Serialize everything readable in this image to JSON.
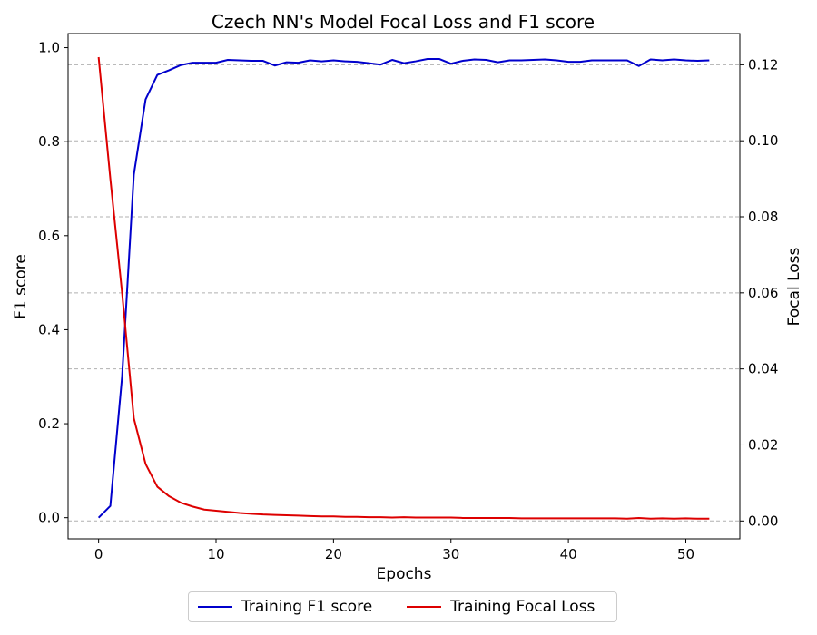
{
  "chart_data": {
    "type": "line",
    "title": "Czech NN's Model Focal Loss and F1 score",
    "xlabel": "Epochs",
    "ylabel_left": "F1 score",
    "ylabel_right": "Focal Loss",
    "xlim": [
      -2.6,
      54.6
    ],
    "ylim_left": [
      -0.045,
      1.03
    ],
    "ylim_right": [
      -0.0047,
      0.1282
    ],
    "x_ticks": [
      0,
      10,
      20,
      30,
      40,
      50
    ],
    "y_left_ticks": [
      0.0,
      0.2,
      0.4,
      0.6,
      0.8,
      1.0
    ],
    "y_right_ticks": [
      0.0,
      0.02,
      0.04,
      0.06,
      0.08,
      0.1,
      0.12
    ],
    "grid": "horizontal dashed on right axis",
    "legend_position": "bottom-center",
    "x": [
      0,
      1,
      2,
      3,
      4,
      5,
      6,
      7,
      8,
      9,
      10,
      11,
      12,
      13,
      14,
      15,
      16,
      17,
      18,
      19,
      20,
      21,
      22,
      23,
      24,
      25,
      26,
      27,
      28,
      29,
      30,
      31,
      32,
      33,
      34,
      35,
      36,
      37,
      38,
      39,
      40,
      41,
      42,
      43,
      44,
      45,
      46,
      47,
      48,
      49,
      50,
      51,
      52
    ],
    "series": [
      {
        "name": "Training F1 score",
        "axis": "left",
        "color": "#0000cc",
        "values": [
          0.0,
          0.025,
          0.3,
          0.73,
          0.89,
          0.942,
          0.952,
          0.963,
          0.968,
          0.968,
          0.968,
          0.974,
          0.973,
          0.972,
          0.972,
          0.962,
          0.969,
          0.968,
          0.973,
          0.971,
          0.973,
          0.971,
          0.97,
          0.967,
          0.964,
          0.974,
          0.967,
          0.971,
          0.976,
          0.976,
          0.966,
          0.972,
          0.975,
          0.974,
          0.969,
          0.973,
          0.973,
          0.974,
          0.975,
          0.973,
          0.97,
          0.97,
          0.973,
          0.973,
          0.973,
          0.973,
          0.961,
          0.975,
          0.973,
          0.975,
          0.973,
          0.972,
          0.973
        ]
      },
      {
        "name": "Training Focal Loss",
        "axis": "right",
        "color": "#dd0000",
        "values": [
          0.122,
          0.09,
          0.06,
          0.027,
          0.015,
          0.009,
          0.0065,
          0.0048,
          0.0038,
          0.003,
          0.0027,
          0.0024,
          0.0021,
          0.0019,
          0.0017,
          0.0016,
          0.0015,
          0.0014,
          0.0013,
          0.0012,
          0.0012,
          0.0011,
          0.0011,
          0.001,
          0.001,
          0.0009,
          0.001,
          0.0009,
          0.0009,
          0.0009,
          0.0009,
          0.0008,
          0.0008,
          0.0008,
          0.0008,
          0.0008,
          0.0007,
          0.0007,
          0.0007,
          0.0007,
          0.0007,
          0.0007,
          0.0007,
          0.0007,
          0.0007,
          0.0006,
          0.0008,
          0.0006,
          0.0007,
          0.0006,
          0.0007,
          0.0006,
          0.0006
        ]
      }
    ]
  }
}
